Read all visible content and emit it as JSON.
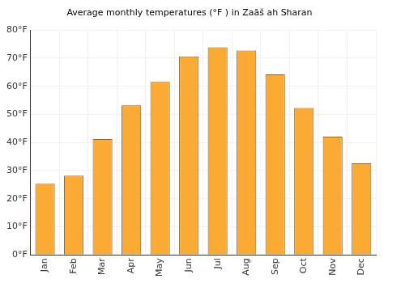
{
  "chart_data": {
    "type": "bar",
    "title": "Average monthly temperatures (°F ) in Zaāš ah Sharan",
    "categories": [
      "Jan",
      "Feb",
      "Mar",
      "Apr",
      "May",
      "Jun",
      "Jul",
      "Aug",
      "Sep",
      "Oct",
      "Nov",
      "Dec"
    ],
    "values": [
      25.3,
      28.2,
      41.2,
      53.2,
      61.6,
      70.6,
      73.9,
      72.7,
      64.2,
      52.3,
      42.1,
      32.6
    ],
    "color": "#fbaa33",
    "ylim": [
      0,
      80
    ],
    "yticks": [
      {
        "value": 0,
        "label": "0°F"
      },
      {
        "value": 10,
        "label": "10°F"
      },
      {
        "value": 20,
        "label": "20°F"
      },
      {
        "value": 30,
        "label": "30°F"
      },
      {
        "value": 40,
        "label": "40°F"
      },
      {
        "value": 50,
        "label": "50°F"
      },
      {
        "value": 60,
        "label": "60°F"
      },
      {
        "value": 70,
        "label": "70°F"
      },
      {
        "value": 80,
        "label": "80°F"
      }
    ],
    "grid": true
  }
}
